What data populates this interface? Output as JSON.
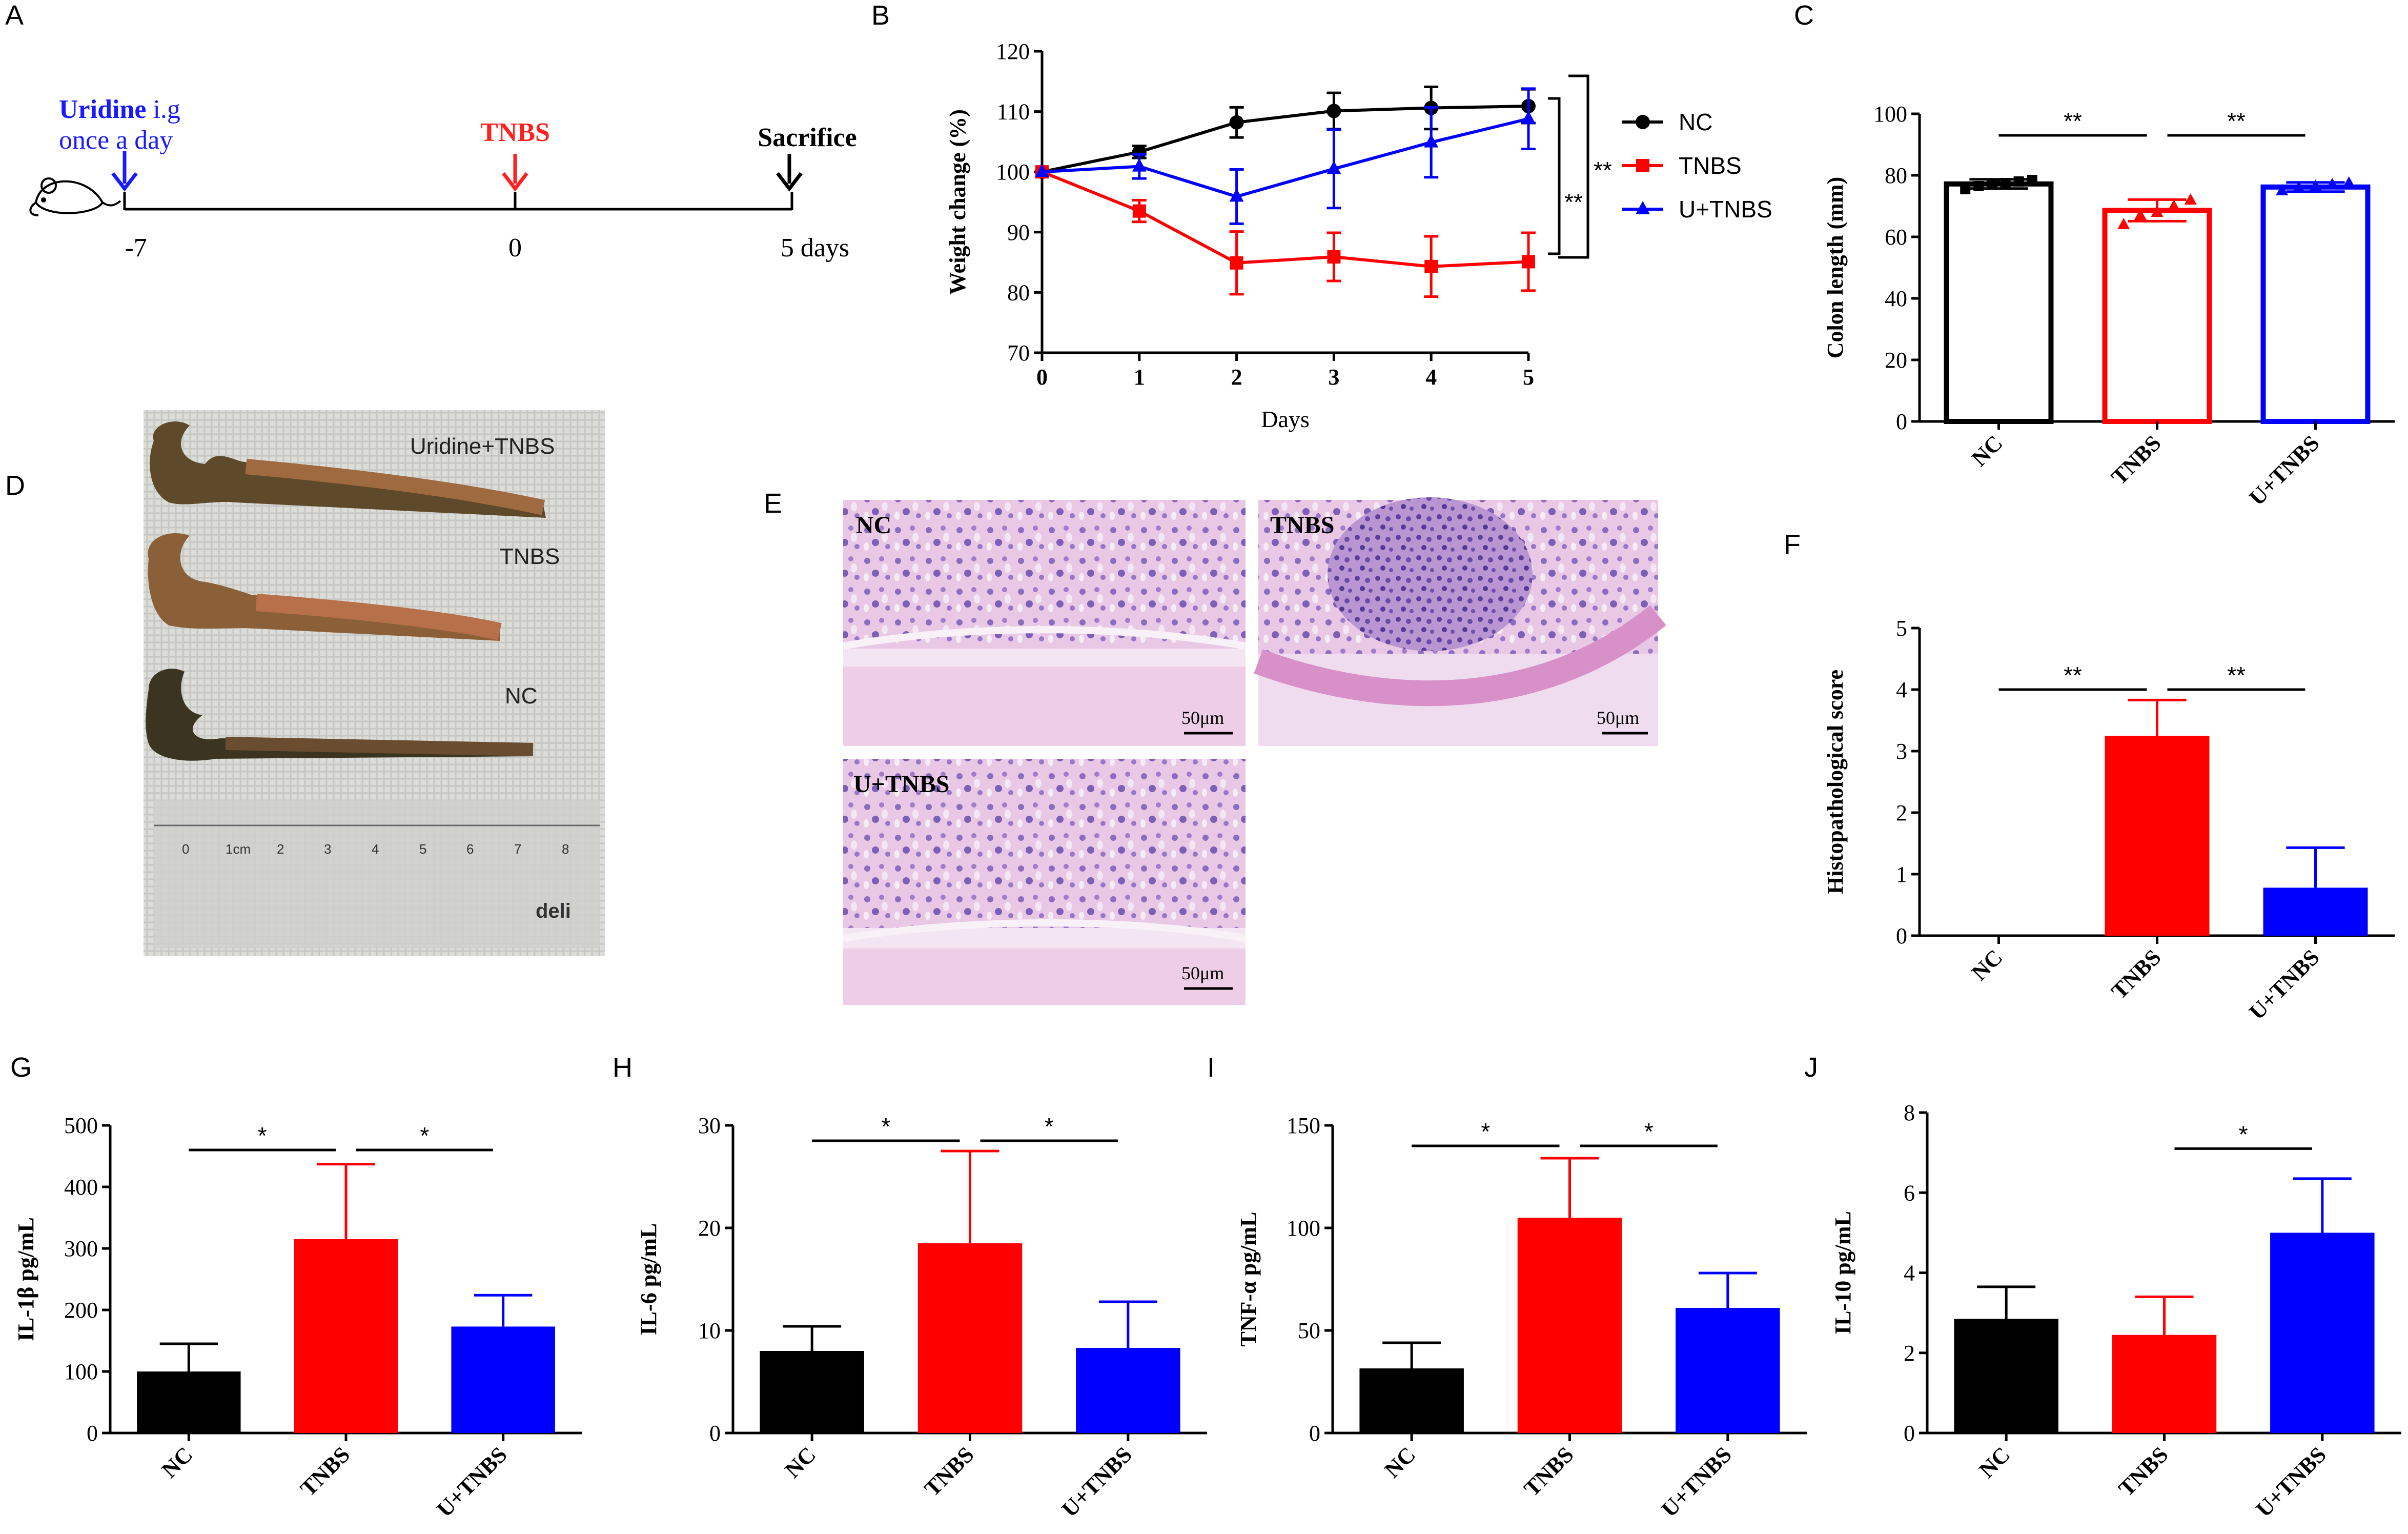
{
  "panels": {
    "A": "A",
    "B": "B",
    "C": "C",
    "D": "D",
    "E": "E",
    "F": "F",
    "G": "G",
    "H": "H",
    "I": "I",
    "J": "J"
  },
  "colors": {
    "NC": "#000000",
    "TNBS": "#ff0000",
    "UTNBS": "#0000ff",
    "uridine_text": "#1a1aff",
    "tnbs_text": "#ff2020"
  },
  "timeline": {
    "uridine_label": "Uridine",
    "uridine_suffix": " i.g",
    "uridine_line2": "once a day",
    "tnbs_label": "TNBS",
    "sacrifice_label": "Sacrifice",
    "t_start": "-7",
    "t_mid": "0",
    "t_end": "5 days"
  },
  "photo": {
    "labels": [
      "Uridine+TNBS",
      "TNBS",
      "NC"
    ],
    "ruler_ticks": [
      "0",
      "1cm",
      "2",
      "3",
      "4",
      "5",
      "6",
      "7",
      "8"
    ],
    "brand": "deli"
  },
  "histology": {
    "labels": [
      "NC",
      "TNBS",
      "U+TNBS"
    ],
    "scale": "50μm"
  },
  "chart_data": [
    {
      "id": "B",
      "type": "line",
      "title": "",
      "xlabel": "Days",
      "ylabel": "Weight change (%)",
      "x": [
        0,
        1,
        2,
        3,
        4,
        5
      ],
      "ylim": [
        70,
        120
      ],
      "yticks": [
        70,
        80,
        90,
        100,
        110,
        120
      ],
      "series": [
        {
          "name": "NC",
          "color": "#000000",
          "marker": "circle",
          "values": [
            100,
            103.3,
            108.2,
            110.1,
            110.6,
            110.9
          ],
          "err": [
            0,
            1.0,
            2.5,
            3.0,
            3.5,
            2.8
          ]
        },
        {
          "name": "TNBS",
          "color": "#ff0000",
          "marker": "square",
          "values": [
            100,
            93.5,
            84.9,
            85.9,
            84.3,
            85.1
          ],
          "err": [
            0,
            1.8,
            5.2,
            4.0,
            5.0,
            4.8
          ]
        },
        {
          "name": "U+TNBS",
          "color": "#0000ff",
          "marker": "triangle",
          "values": [
            100,
            100.9,
            95.9,
            100.5,
            104.9,
            108.8
          ],
          "err": [
            0,
            2.0,
            4.5,
            6.5,
            5.8,
            5.0
          ]
        }
      ],
      "significance": [
        "**",
        "**"
      ]
    },
    {
      "id": "C",
      "type": "bar",
      "categories": [
        "NC",
        "TNBS",
        "U+TNBS"
      ],
      "ylabel": "Colon length (mm)",
      "ylim": [
        0,
        100
      ],
      "yticks": [
        0,
        20,
        40,
        60,
        80,
        100
      ],
      "values": [
        77.2,
        68.6,
        76.2
      ],
      "err": [
        1.5,
        3.5,
        1.5
      ],
      "style": "outline",
      "points": [
        [
          75.5,
          76.5,
          77,
          77.5,
          78,
          78.5
        ],
        [
          64,
          67,
          68,
          70,
          72
        ],
        [
          75,
          76,
          76.5,
          77,
          77.5
        ]
      ],
      "significance": [
        {
          "pair": [
            0,
            1
          ],
          "label": "**"
        },
        {
          "pair": [
            1,
            2
          ],
          "label": "**"
        }
      ]
    },
    {
      "id": "F",
      "type": "bar",
      "categories": [
        "NC",
        "TNBS",
        "U+TNBS"
      ],
      "ylabel": "Histopathological score",
      "ylim": [
        0,
        5
      ],
      "yticks": [
        0,
        1,
        2,
        3,
        4,
        5
      ],
      "values": [
        0,
        3.25,
        0.78
      ],
      "err": [
        0,
        0.58,
        0.65
      ],
      "significance": [
        {
          "pair": [
            0,
            1
          ],
          "label": "**"
        },
        {
          "pair": [
            1,
            2
          ],
          "label": "**"
        }
      ]
    },
    {
      "id": "G",
      "type": "bar",
      "categories": [
        "NC",
        "TNBS",
        "U+TNBS"
      ],
      "ylabel": "IL-1β pg/mL",
      "ylim": [
        0,
        500
      ],
      "yticks": [
        0,
        100,
        200,
        300,
        400,
        500
      ],
      "values": [
        100,
        315,
        173
      ],
      "err": [
        45,
        122,
        51
      ],
      "significance": [
        {
          "pair": [
            0,
            1
          ],
          "label": "*"
        },
        {
          "pair": [
            1,
            2
          ],
          "label": "*"
        }
      ]
    },
    {
      "id": "H",
      "type": "bar",
      "categories": [
        "NC",
        "TNBS",
        "U+TNBS"
      ],
      "ylabel": "IL-6 pg/mL",
      "ylim": [
        0,
        30
      ],
      "yticks": [
        0,
        10,
        20,
        30
      ],
      "values": [
        8.0,
        18.5,
        8.3
      ],
      "err": [
        2.4,
        9.0,
        4.5
      ],
      "significance": [
        {
          "pair": [
            0,
            1
          ],
          "label": "*"
        },
        {
          "pair": [
            1,
            2
          ],
          "label": "*"
        }
      ]
    },
    {
      "id": "I",
      "type": "bar",
      "categories": [
        "NC",
        "TNBS",
        "U+TNBS"
      ],
      "ylabel": "TNF-α pg/mL",
      "ylim": [
        0,
        150
      ],
      "yticks": [
        0,
        50,
        100,
        150
      ],
      "values": [
        31.5,
        105,
        61
      ],
      "err": [
        12.5,
        29,
        17
      ],
      "significance": [
        {
          "pair": [
            0,
            1
          ],
          "label": "*"
        },
        {
          "pair": [
            1,
            2
          ],
          "label": "*"
        }
      ]
    },
    {
      "id": "J",
      "type": "bar",
      "categories": [
        "NC",
        "TNBS",
        "U+TNBS"
      ],
      "ylabel": "IL-10 pg/mL",
      "ylim": [
        0,
        8
      ],
      "yticks": [
        0,
        2,
        4,
        6,
        8
      ],
      "values": [
        2.85,
        2.45,
        5.0
      ],
      "err": [
        0.8,
        0.95,
        1.35
      ],
      "significance": [
        {
          "pair": [
            1,
            2
          ],
          "label": "*"
        }
      ]
    }
  ]
}
